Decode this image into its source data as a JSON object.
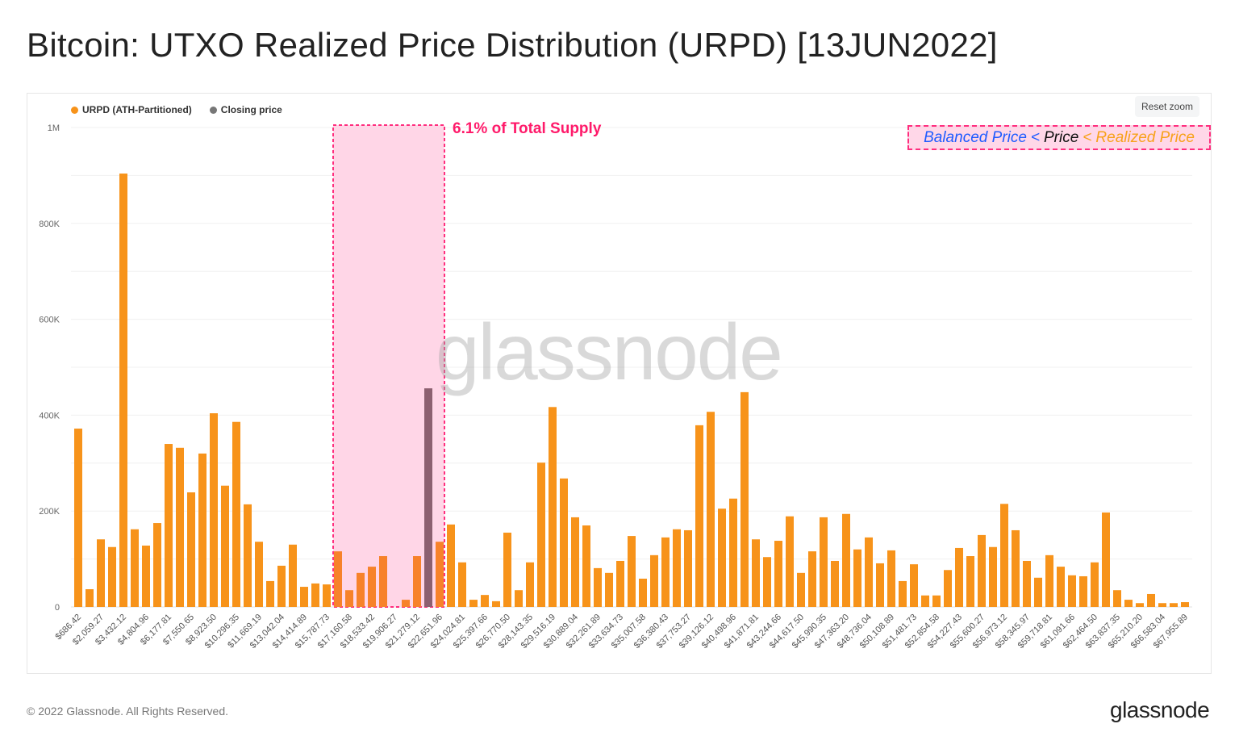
{
  "title": "Bitcoin: UTXO Realized Price Distribution (URPD) [13JUN2022]",
  "reset_zoom": "Reset zoom",
  "annotations": {
    "supply": "6.1% of Total Supply",
    "balanced": "Balanced Price",
    "lt1": "<",
    "price": "Price",
    "lt2": "<",
    "realized": "Realized Price"
  },
  "footer": {
    "copyright": "© 2022 Glassnode. All Rights Reserved.",
    "logo": "glassnode",
    "watermark": "glassnode"
  },
  "colors": {
    "urpd": "#f7931a",
    "closing": "#8c6070",
    "highlight": "#ffd6e7",
    "highlight_border": "#ff2e7e",
    "balanced": "#1f5cff",
    "realized": "#f7a21a"
  },
  "chart_data": {
    "type": "bar",
    "legend": [
      {
        "name": "URPD (ATH-Partitioned)",
        "color": "#f7931a"
      },
      {
        "name": "Closing price",
        "color": "#777777"
      }
    ],
    "legend_placement": "top-left",
    "y_ticks": [
      "0",
      "200K",
      "400K",
      "600K",
      "800K",
      "1M"
    ],
    "ylim": [
      0,
      1000000
    ],
    "grid": true,
    "tick_labels": [
      "$686.42",
      "$2,059.27",
      "$3,432.12",
      "$4,804.96",
      "$6,177.81",
      "$7,550.65",
      "$8,923.50",
      "$10,296.35",
      "$11,669.19",
      "$13,042.04",
      "$14,414.89",
      "$15,787.73",
      "$17,160.58",
      "$18,533.42",
      "$19,906.27",
      "$21,279.12",
      "$22,651.96",
      "$24,024.81",
      "$25,397.66",
      "$26,770.50",
      "$28,143.35",
      "$29,516.19",
      "$30,889.04",
      "$32,261.89",
      "$33,634.73",
      "$35,007.58",
      "$36,380.43",
      "$37,753.27",
      "$39,126.12",
      "$40,498.96",
      "$41,871.81",
      "$43,244.66",
      "$44,617.50",
      "$45,990.35",
      "$47,363.20",
      "$48,736.04",
      "$50,108.89",
      "$51,481.73",
      "$52,854.58",
      "$54,227.43",
      "$55,600.27",
      "$56,973.12",
      "$58,345.97",
      "$59,718.81",
      "$61,091.66",
      "$62,464.50",
      "$63,837.35",
      "$65,210.20",
      "$66,583.04",
      "$67,955.89"
    ],
    "values": [
      372000,
      37000,
      141000,
      125000,
      904000,
      162000,
      128000,
      175000,
      340000,
      332000,
      239000,
      320000,
      404000,
      253000,
      386000,
      214000,
      136000,
      54000,
      86000,
      130000,
      42000,
      49000,
      47000,
      116000,
      35000,
      71000,
      84000,
      106000,
      0,
      15000,
      106000,
      456000,
      136000,
      172000,
      93000,
      15000,
      25000,
      12000,
      155000,
      35000,
      93000,
      301000,
      417000,
      268000,
      187000,
      170000,
      81000,
      71000,
      96000,
      148000,
      59000,
      108000,
      145000,
      162000,
      160000,
      379000,
      407000,
      205000,
      226000,
      448000,
      141000,
      104000,
      138000,
      189000,
      71000,
      116000,
      187000,
      96000,
      194000,
      120000,
      145000,
      91000,
      118000,
      54000,
      89000,
      24000,
      24000,
      77000,
      123000,
      106000,
      150000,
      125000,
      215000,
      160000,
      96000,
      61000,
      108000,
      84000,
      66000,
      64000,
      93000,
      197000,
      35000,
      15000,
      8000,
      27000,
      8000,
      8000,
      10000
    ],
    "closing_price_bar_index": 31,
    "highlight_bar_range": [
      23,
      32
    ]
  }
}
